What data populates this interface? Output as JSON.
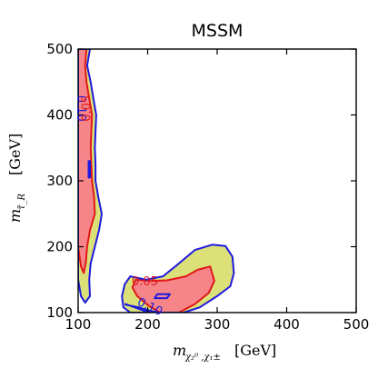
{
  "chart_data": {
    "type": "contour",
    "title": "MSSM",
    "xlabel": {
      "main": "m",
      "sub": "χ₂⁰ ,χ₁±",
      "unit": "[GeV]"
    },
    "ylabel": {
      "main": "m",
      "sub": "τ̃_R",
      "unit": "[GeV]"
    },
    "xlim": [
      100,
      500
    ],
    "ylim": [
      100,
      500
    ],
    "xticks": [
      "100",
      "200",
      "300",
      "400",
      "500"
    ],
    "yticks": [
      "100",
      "200",
      "300",
      "400",
      "500"
    ],
    "colors": {
      "level_0_10_fill": "#dbe178",
      "level_0_05_fill": "#f6858a",
      "level_0_10_line": "#1f1ae0",
      "level_0_05_line": "#e01818"
    },
    "contours": [
      {
        "level": 0.1,
        "label": "0.10",
        "label_instances": [
          {
            "x": 103,
            "y": 410,
            "rotate": 90
          },
          {
            "x": 203,
            "y": 108,
            "rotate": 25
          }
        ],
        "fill_regions": [
          [
            [
              117,
              500
            ],
            [
              113,
              475
            ],
            [
              118,
              450
            ],
            [
              122,
              425
            ],
            [
              126,
              400
            ],
            [
              125,
              375
            ],
            [
              124,
              350
            ],
            [
              125,
              325
            ],
            [
              125,
              300
            ],
            [
              129,
              275
            ],
            [
              134,
              250
            ],
            [
              130,
              225
            ],
            [
              124,
              200
            ],
            [
              118,
              175
            ],
            [
              116,
              150
            ],
            [
              117,
              125
            ],
            [
              110,
              115
            ],
            [
              104,
              125
            ],
            [
              100,
              150
            ],
            [
              100,
              500
            ]
          ],
          [
            [
              175,
              155
            ],
            [
              198,
              150
            ],
            [
              222,
              155
            ],
            [
              242,
              172
            ],
            [
              268,
              195
            ],
            [
              293,
              203
            ],
            [
              312,
              201
            ],
            [
              322,
              185
            ],
            [
              324,
              160
            ],
            [
              319,
              140
            ],
            [
              300,
              125
            ],
            [
              275,
              108
            ],
            [
              252,
              100
            ],
            [
              175,
              100
            ],
            [
              165,
              108
            ],
            [
              163,
              125
            ],
            [
              167,
              143
            ]
          ]
        ],
        "hole_regions": [
          [
            [
              214,
              128
            ],
            [
              232,
              128
            ],
            [
              228,
              122
            ],
            [
              210,
              122
            ]
          ],
          [
            [
              115,
              330
            ],
            [
              117,
              330
            ],
            [
              117,
              305
            ],
            [
              115,
              305
            ]
          ],
          [
            [
              168,
              113
            ],
            [
              168,
              112
            ],
            [
              187,
              108
            ],
            [
              202,
              103
            ],
            [
              217,
              100
            ],
            [
              202,
              100
            ],
            [
              186,
              106
            ]
          ]
        ]
      },
      {
        "level": 0.05,
        "label": "0.05",
        "label_instances": [
          {
            "x": 113,
            "y": 410,
            "rotate": 270
          },
          {
            "x": 196,
            "y": 146,
            "rotate": 0
          }
        ],
        "fill_regions": [
          [
            [
              112,
              500
            ],
            [
              110,
              475
            ],
            [
              112,
              450
            ],
            [
              116,
              425
            ],
            [
              120,
              400
            ],
            [
              119,
              375
            ],
            [
              118,
              350
            ],
            [
              119,
              325
            ],
            [
              120,
              300
            ],
            [
              123,
              275
            ],
            [
              124,
              250
            ],
            [
              117,
              225
            ],
            [
              113,
              200
            ],
            [
              111,
              175
            ],
            [
              108,
              160
            ],
            [
              104,
              170
            ],
            [
              100,
              200
            ],
            [
              100,
              500
            ]
          ],
          [
            [
              183,
              150
            ],
            [
              205,
              148
            ],
            [
              228,
              149
            ],
            [
              255,
              155
            ],
            [
              272,
              165
            ],
            [
              290,
              170
            ],
            [
              296,
              148
            ],
            [
              288,
              130
            ],
            [
              268,
              113
            ],
            [
              245,
              100
            ],
            [
              218,
              100
            ],
            [
              202,
              110
            ],
            [
              185,
              125
            ],
            [
              178,
              138
            ]
          ]
        ]
      }
    ]
  }
}
